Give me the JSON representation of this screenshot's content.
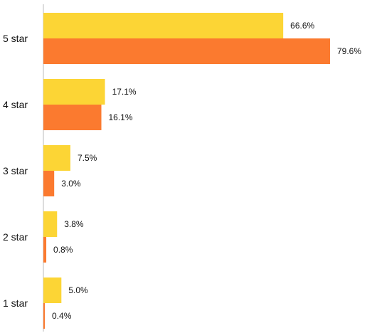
{
  "chart_data": {
    "type": "bar",
    "orientation": "horizontal",
    "title": "",
    "xlabel": "",
    "ylabel": "",
    "grid": false,
    "legend": "none",
    "categories": [
      "5 star",
      "4 star",
      "3 star",
      "2 star",
      "1  star"
    ],
    "series": [
      {
        "color": "#FCD535",
        "values": [
          66.6,
          17.1,
          7.5,
          3.8,
          5.0
        ],
        "labels": [
          "66.6%",
          "17.1%",
          "7.5%",
          "3.8%",
          "5.0%"
        ]
      },
      {
        "color": "#FB7A2F",
        "values": [
          79.6,
          16.1,
          3.0,
          0.8,
          0.4
        ],
        "labels": [
          "79.6%",
          "16.1%",
          "3.0%",
          "0.8%",
          "0.4%"
        ]
      }
    ],
    "xlim": [
      0,
      100
    ],
    "axis_color": "#BBBBBB"
  }
}
